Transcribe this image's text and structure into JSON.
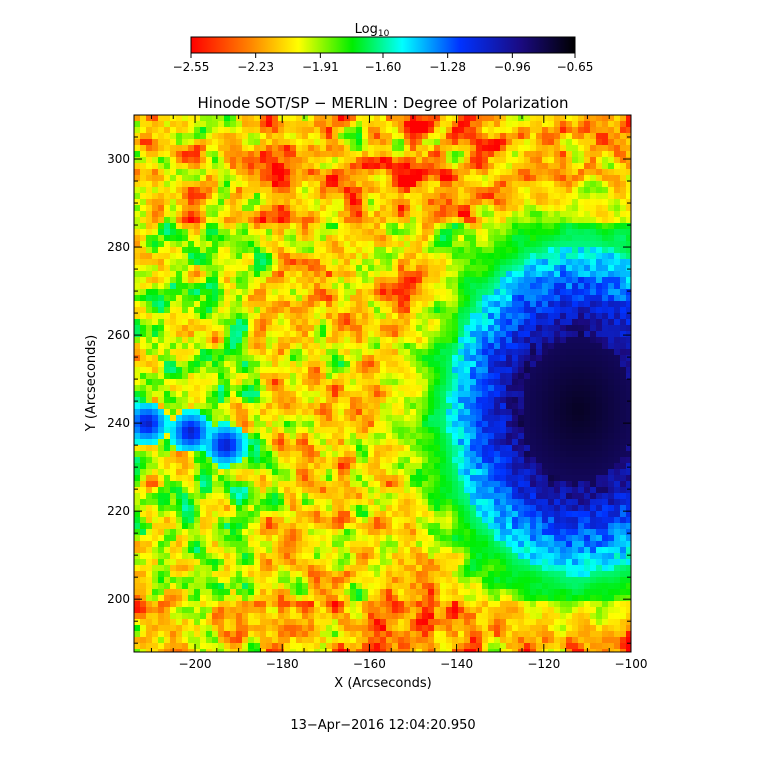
{
  "chart_data": {
    "type": "heatmap",
    "title": "Hinode SOT/SP − MERLIN : Degree of Polarization",
    "xlabel": "X (Arcseconds)",
    "ylabel": "Y (Arcseconds)",
    "xlim": [
      -214,
      -100
    ],
    "ylim": [
      188,
      310
    ],
    "x_ticks": [
      -200,
      -180,
      -160,
      -140,
      -120,
      -100
    ],
    "x_tick_labels": [
      "−200",
      "−180",
      "−160",
      "−140",
      "−120",
      "−100"
    ],
    "y_ticks": [
      200,
      220,
      240,
      260,
      280,
      300
    ],
    "y_tick_labels": [
      "200",
      "220",
      "240",
      "260",
      "280",
      "300"
    ],
    "colorbar": {
      "label_base": "Log",
      "label_sub": "10",
      "range": [
        -2.55,
        -0.65
      ],
      "ticks": [
        -2.55,
        -2.23,
        -1.91,
        -1.6,
        -1.28,
        -0.96,
        -0.65
      ],
      "tick_labels": [
        "−2.55",
        "−2.23",
        "−1.91",
        "−1.60",
        "−1.28",
        "−0.96",
        "−0.65"
      ],
      "colormap": [
        "#ff0000",
        "#ff9900",
        "#ffff00",
        "#00ee00",
        "#00ffff",
        "#0033ff",
        "#1a0a80",
        "#000000"
      ]
    },
    "features": {
      "sunspot_center": [
        -112,
        243
      ],
      "sunspot_umbra_radius": 13,
      "sunspot_penumbra_radius": 30,
      "pores": [
        [
          -211,
          240
        ],
        [
          -201,
          238
        ],
        [
          -193,
          235
        ]
      ]
    }
  },
  "timestamp": "13−Apr−2016 12:04:20.950"
}
